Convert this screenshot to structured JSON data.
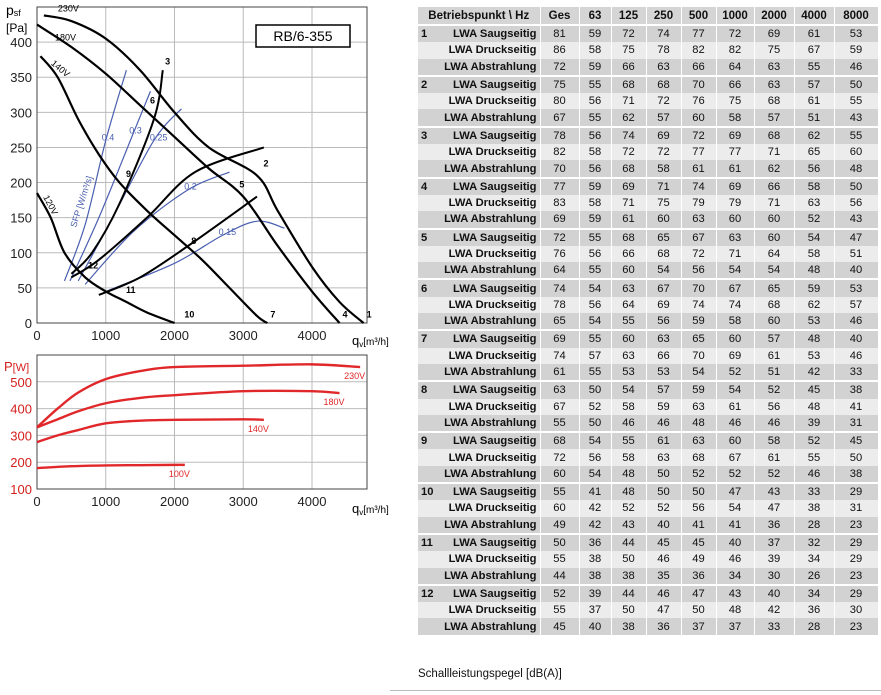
{
  "chart_data": [
    {
      "type": "line",
      "model_label": "RB/6-355",
      "ylabel_main": "p",
      "ylabel_sub": "sf",
      "yunit": "[Pa]",
      "xlabel_main": "q",
      "xlabel_sub": "v",
      "xunit": "[m³/h]",
      "xlim": [
        0,
        4800
      ],
      "ylim": [
        0,
        450
      ],
      "xticks": [
        0,
        1000,
        2000,
        3000,
        4000
      ],
      "yticks": [
        0,
        50,
        100,
        150,
        200,
        250,
        300,
        350,
        400
      ],
      "grid": true,
      "fan_curves": [
        {
          "name": "230V",
          "points": [
            [
              100,
              438
            ],
            [
              500,
              430
            ],
            [
              1000,
              405
            ],
            [
              1500,
              360
            ],
            [
              2000,
              300
            ],
            [
              2500,
              250
            ],
            [
              3200,
              210
            ],
            [
              3500,
              160
            ],
            [
              4000,
              80
            ],
            [
              4400,
              30
            ],
            [
              4750,
              0
            ]
          ]
        },
        {
          "name": "180V",
          "points": [
            [
              0,
              425
            ],
            [
              500,
              393
            ],
            [
              1000,
              355
            ],
            [
              1500,
              310
            ],
            [
              2000,
              265
            ],
            [
              2500,
              220
            ],
            [
              3000,
              180
            ],
            [
              3500,
              110
            ],
            [
              4000,
              45
            ],
            [
              4400,
              0
            ]
          ]
        },
        {
          "name": "140V",
          "points": [
            [
              50,
              380
            ],
            [
              300,
              350
            ],
            [
              600,
              290
            ],
            [
              900,
              240
            ],
            [
              1200,
              200
            ],
            [
              1600,
              160
            ],
            [
              2000,
              125
            ],
            [
              2400,
              90
            ],
            [
              2800,
              50
            ],
            [
              3200,
              10
            ],
            [
              3350,
              0
            ]
          ]
        },
        {
          "name": "120V",
          "points": [
            [
              0,
              185
            ],
            [
              200,
              150
            ],
            [
              400,
              100
            ],
            [
              700,
              65
            ],
            [
              1000,
              45
            ],
            [
              1300,
              30
            ],
            [
              1600,
              15
            ],
            [
              2000,
              0
            ]
          ]
        }
      ],
      "system_curves": [
        {
          "points": [
            [
              500,
              70
            ],
            [
              800,
              100
            ],
            [
              1200,
              170
            ],
            [
              1700,
              290
            ],
            [
              1830,
              360
            ]
          ]
        },
        {
          "points": [
            [
              500,
              65
            ],
            [
              900,
              90
            ],
            [
              1600,
              150
            ],
            [
              2300,
              215
            ],
            [
              3300,
              250
            ]
          ]
        },
        {
          "points": [
            [
              900,
              40
            ],
            [
              1500,
              65
            ],
            [
              2200,
              110
            ],
            [
              3200,
              180
            ]
          ]
        }
      ],
      "sfp_curves": [
        {
          "label": "0.4",
          "points": [
            [
              400,
              60
            ],
            [
              700,
              140
            ],
            [
              1000,
              260
            ],
            [
              1300,
              360
            ]
          ]
        },
        {
          "label": "0.3",
          "points": [
            [
              480,
              60
            ],
            [
              900,
              150
            ],
            [
              1400,
              270
            ],
            [
              1650,
              330
            ]
          ]
        },
        {
          "label": "0.25",
          "points": [
            [
              600,
              60
            ],
            [
              1100,
              150
            ],
            [
              1700,
              260
            ],
            [
              2100,
              305
            ]
          ]
        },
        {
          "label": "0.2",
          "points": [
            [
              700,
              55
            ],
            [
              1400,
              130
            ],
            [
              2200,
              190
            ],
            [
              2800,
              215
            ]
          ]
        },
        {
          "label": "0.15",
          "points": [
            [
              1000,
              45
            ],
            [
              2000,
              85
            ],
            [
              2700,
              125
            ],
            [
              3200,
              145
            ],
            [
              3600,
              135
            ]
          ]
        }
      ],
      "sfp_label": "SFP [W/m³/s]",
      "operating_points": [
        {
          "label": "1",
          "x": 4750,
          "y": 5
        },
        {
          "label": "2",
          "x": 3250,
          "y": 220
        },
        {
          "label": "3",
          "x": 1820,
          "y": 365
        },
        {
          "label": "4",
          "x": 4400,
          "y": 5
        },
        {
          "label": "5",
          "x": 2900,
          "y": 190
        },
        {
          "label": "6",
          "x": 1600,
          "y": 310
        },
        {
          "label": "7",
          "x": 3350,
          "y": 5
        },
        {
          "label": "8",
          "x": 2200,
          "y": 110
        },
        {
          "label": "9",
          "x": 1250,
          "y": 205
        },
        {
          "label": "10",
          "x": 2100,
          "y": 5
        },
        {
          "label": "11",
          "x": 1250,
          "y": 40
        },
        {
          "label": "12",
          "x": 700,
          "y": 75
        }
      ]
    },
    {
      "type": "line",
      "ylabel_main": "P",
      "yunit": "[W]",
      "xlabel_main": "q",
      "xlabel_sub": "v",
      "xunit": "[m³/h]",
      "xlim": [
        0,
        4800
      ],
      "ylim": [
        100,
        600
      ],
      "xticks": [
        0,
        1000,
        2000,
        3000,
        4000
      ],
      "yticks": [
        100,
        200,
        300,
        400,
        500
      ],
      "grid": true,
      "series": [
        {
          "name": "230V",
          "points": [
            [
              0,
              330
            ],
            [
              300,
              400
            ],
            [
              600,
              460
            ],
            [
              1000,
              510
            ],
            [
              1500,
              540
            ],
            [
              2000,
              555
            ],
            [
              3000,
              560
            ],
            [
              4000,
              565
            ],
            [
              4700,
              555
            ]
          ]
        },
        {
          "name": "180V",
          "points": [
            [
              0,
              330
            ],
            [
              300,
              360
            ],
            [
              600,
              390
            ],
            [
              1000,
              420
            ],
            [
              1500,
              440
            ],
            [
              2000,
              450
            ],
            [
              3000,
              465
            ],
            [
              4000,
              465
            ],
            [
              4400,
              458
            ]
          ]
        },
        {
          "name": "140V",
          "points": [
            [
              0,
              275
            ],
            [
              300,
              300
            ],
            [
              600,
              320
            ],
            [
              1000,
              345
            ],
            [
              1500,
              355
            ],
            [
              2000,
              358
            ],
            [
              3000,
              360
            ],
            [
              3300,
              358
            ]
          ]
        },
        {
          "name": "100V",
          "points": [
            [
              0,
              178
            ],
            [
              500,
              185
            ],
            [
              1000,
              188
            ],
            [
              1500,
              189
            ],
            [
              2000,
              190
            ],
            [
              2150,
              190
            ]
          ]
        }
      ]
    }
  ],
  "table": {
    "headers": [
      "Betriebspunkt \\ Hz",
      "Ges",
      "63",
      "125",
      "250",
      "500",
      "1000",
      "2000",
      "4000",
      "8000"
    ],
    "row_labels": [
      "LWA Saugseitig",
      "LWA Druckseitig",
      "LWA Abstrahlung"
    ],
    "groups": [
      {
        "point": "1",
        "rows": [
          [
            81,
            59,
            72,
            74,
            77,
            72,
            69,
            61,
            53
          ],
          [
            86,
            58,
            75,
            78,
            82,
            82,
            75,
            67,
            59
          ],
          [
            72,
            59,
            66,
            63,
            66,
            64,
            63,
            55,
            46
          ]
        ]
      },
      {
        "point": "2",
        "rows": [
          [
            75,
            55,
            68,
            68,
            70,
            66,
            63,
            57,
            50
          ],
          [
            80,
            56,
            71,
            72,
            76,
            75,
            68,
            61,
            55
          ],
          [
            67,
            55,
            62,
            57,
            60,
            58,
            57,
            51,
            43
          ]
        ]
      },
      {
        "point": "3",
        "rows": [
          [
            78,
            56,
            74,
            69,
            72,
            69,
            68,
            62,
            55
          ],
          [
            82,
            58,
            72,
            72,
            77,
            77,
            71,
            65,
            60
          ],
          [
            70,
            56,
            68,
            58,
            61,
            61,
            62,
            56,
            48
          ]
        ]
      },
      {
        "point": "4",
        "rows": [
          [
            77,
            59,
            69,
            71,
            74,
            69,
            66,
            58,
            50
          ],
          [
            83,
            58,
            71,
            75,
            79,
            79,
            71,
            63,
            56
          ],
          [
            69,
            59,
            61,
            60,
            63,
            60,
            60,
            52,
            43
          ]
        ]
      },
      {
        "point": "5",
        "rows": [
          [
            72,
            55,
            68,
            65,
            67,
            63,
            60,
            54,
            47
          ],
          [
            76,
            56,
            66,
            68,
            72,
            71,
            64,
            58,
            51
          ],
          [
            64,
            55,
            60,
            54,
            56,
            54,
            54,
            48,
            40
          ]
        ]
      },
      {
        "point": "6",
        "rows": [
          [
            74,
            54,
            63,
            67,
            70,
            67,
            65,
            59,
            53
          ],
          [
            78,
            56,
            64,
            69,
            74,
            74,
            68,
            62,
            57
          ],
          [
            65,
            54,
            55,
            56,
            59,
            58,
            60,
            53,
            46
          ]
        ]
      },
      {
        "point": "7",
        "rows": [
          [
            69,
            55,
            60,
            63,
            65,
            60,
            57,
            48,
            40
          ],
          [
            74,
            57,
            63,
            66,
            70,
            69,
            61,
            53,
            46
          ],
          [
            61,
            55,
            53,
            53,
            54,
            52,
            51,
            42,
            33
          ]
        ]
      },
      {
        "point": "8",
        "rows": [
          [
            63,
            50,
            54,
            57,
            59,
            54,
            52,
            45,
            38
          ],
          [
            67,
            52,
            58,
            59,
            63,
            61,
            56,
            48,
            41
          ],
          [
            55,
            50,
            46,
            46,
            48,
            46,
            46,
            39,
            31
          ]
        ]
      },
      {
        "point": "9",
        "rows": [
          [
            68,
            54,
            55,
            61,
            63,
            60,
            58,
            52,
            45
          ],
          [
            72,
            56,
            58,
            63,
            68,
            67,
            61,
            55,
            50
          ],
          [
            60,
            54,
            48,
            50,
            52,
            52,
            52,
            46,
            38
          ]
        ]
      },
      {
        "point": "10",
        "rows": [
          [
            55,
            41,
            48,
            50,
            50,
            47,
            43,
            33,
            29
          ],
          [
            60,
            42,
            52,
            52,
            56,
            54,
            47,
            38,
            31
          ],
          [
            49,
            42,
            43,
            40,
            41,
            41,
            36,
            28,
            23
          ]
        ]
      },
      {
        "point": "11",
        "rows": [
          [
            50,
            36,
            44,
            45,
            45,
            40,
            37,
            32,
            29
          ],
          [
            55,
            38,
            50,
            46,
            49,
            46,
            39,
            34,
            29
          ],
          [
            44,
            38,
            38,
            35,
            36,
            34,
            30,
            26,
            23
          ]
        ]
      },
      {
        "point": "12",
        "rows": [
          [
            52,
            39,
            44,
            46,
            47,
            43,
            40,
            34,
            29
          ],
          [
            55,
            37,
            50,
            47,
            50,
            48,
            42,
            36,
            30
          ],
          [
            45,
            40,
            38,
            36,
            37,
            37,
            33,
            28,
            23
          ]
        ]
      }
    ],
    "caption": "Schallleistungspegel [dB(A)]"
  },
  "colors": {
    "power_axis": "#d4201f",
    "power_curves": "#e0272a",
    "sfp_curves": "#4a5fb0",
    "fan_curves": "#000000",
    "table_dark": "#d2d2d2",
    "table_light": "#ececec"
  }
}
